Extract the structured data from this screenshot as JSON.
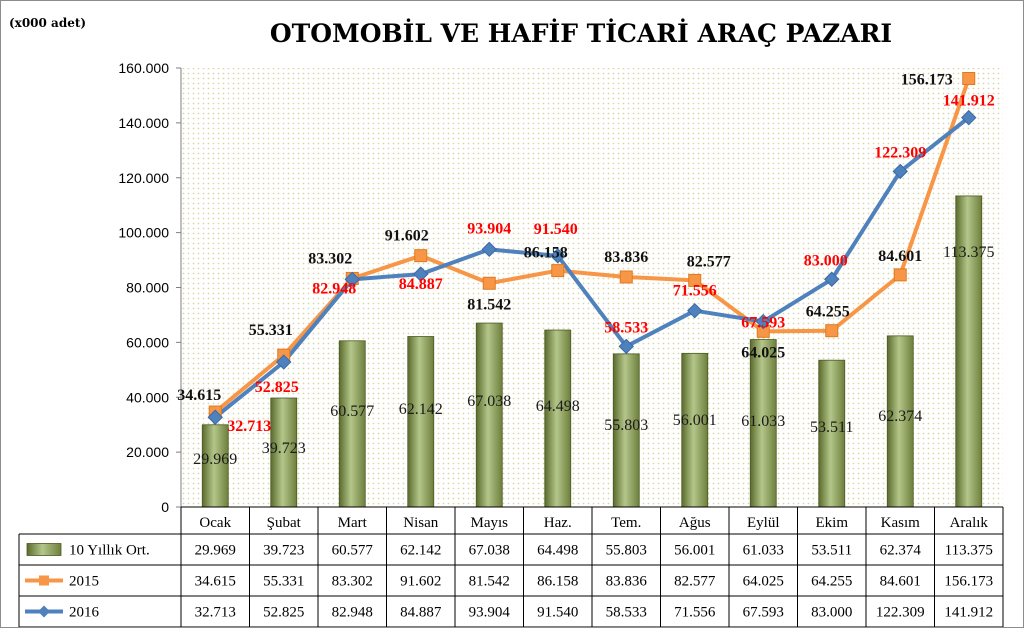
{
  "chart_data": {
    "type": "bar",
    "title": "OTOMOBİL VE HAFİF TİCARİ ARAÇ PAZARI",
    "unit_label": "(x000 adet)",
    "categories": [
      "Ocak",
      "Şubat",
      "Mart",
      "Nisan",
      "Mayıs",
      "Haz.",
      "Tem.",
      "Ağus",
      "Eylül",
      "Ekim",
      "Kasım",
      "Aralık"
    ],
    "ylim": [
      0,
      160000
    ],
    "yticks": [
      {
        "value": 0,
        "label": "0"
      },
      {
        "value": 20000,
        "label": "20.000"
      },
      {
        "value": 40000,
        "label": "40.000"
      },
      {
        "value": 60000,
        "label": "60.000"
      },
      {
        "value": 80000,
        "label": "80.000"
      },
      {
        "value": 100000,
        "label": "100.000"
      },
      {
        "value": 120000,
        "label": "120.000"
      },
      {
        "value": 140000,
        "label": "140.000"
      },
      {
        "value": 160000,
        "label": "160.000"
      }
    ],
    "series": [
      {
        "name": "10 Yıllık Ort.",
        "type": "bar",
        "color": "#8fa45a",
        "values": [
          29969,
          39723,
          60577,
          62142,
          67038,
          64498,
          55803,
          56001,
          61033,
          53511,
          62374,
          113375
        ],
        "labels": [
          "29.969",
          "39.723",
          "60.577",
          "62.142",
          "67.038",
          "64.498",
          "55.803",
          "56.001",
          "61.033",
          "53.511",
          "62.374",
          "113.375"
        ]
      },
      {
        "name": "2015",
        "type": "line",
        "color": "#f79646",
        "values": [
          34615,
          55331,
          83302,
          91602,
          81542,
          86158,
          83836,
          82577,
          64025,
          64255,
          84601,
          156173
        ],
        "labels": [
          "34.615",
          "55.331",
          "83.302",
          "91.602",
          "81.542",
          "86.158",
          "83.836",
          "82.577",
          "64.025",
          "64.255",
          "84.601",
          "156.173"
        ]
      },
      {
        "name": "2016",
        "type": "line",
        "color": "#4f81bd",
        "values": [
          32713,
          52825,
          82948,
          84887,
          93904,
          91540,
          58533,
          71556,
          67593,
          83000,
          122309,
          141912
        ],
        "labels": [
          "32.713",
          "52.825",
          "82.948",
          "84.887",
          "93.904",
          "91.540",
          "58.533",
          "71.556",
          "67.593",
          "83.000",
          "122.309",
          "141.912"
        ]
      }
    ],
    "legend": "table-bottom",
    "grid": false
  }
}
